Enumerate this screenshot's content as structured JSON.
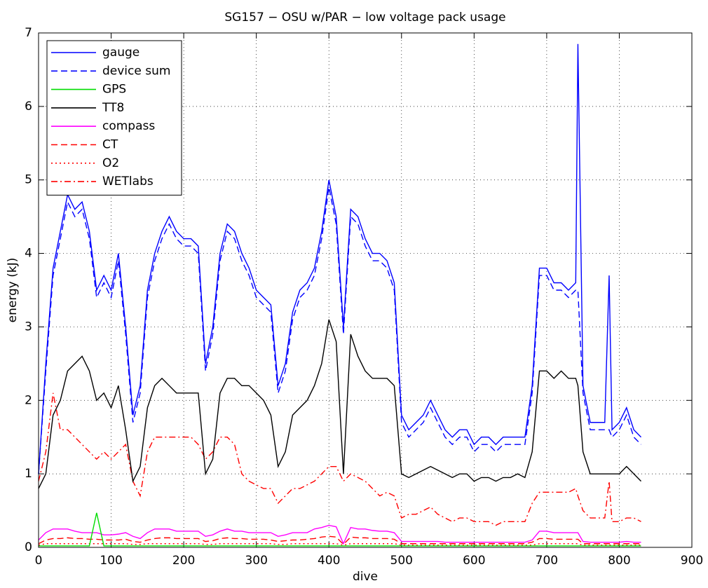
{
  "chart_data": {
    "type": "line",
    "title": "SG157 − OSU w/PAR − low voltage pack usage",
    "x_label": "dive",
    "y_label": "energy (kJ)",
    "xlim": [
      0,
      900
    ],
    "ylim": [
      0,
      7
    ],
    "xticks": [
      0,
      100,
      200,
      300,
      400,
      500,
      600,
      700,
      800,
      900
    ],
    "yticks": [
      0,
      1,
      2,
      3,
      4,
      5,
      6,
      7
    ],
    "grid": true,
    "legend": "upper left",
    "x": [
      0,
      10,
      20,
      30,
      40,
      50,
      60,
      70,
      80,
      90,
      100,
      110,
      120,
      130,
      140,
      150,
      160,
      170,
      180,
      190,
      200,
      210,
      220,
      230,
      240,
      250,
      260,
      270,
      280,
      290,
      300,
      310,
      320,
      330,
      340,
      350,
      360,
      370,
      380,
      390,
      400,
      410,
      420,
      430,
      440,
      450,
      460,
      470,
      480,
      490,
      500,
      510,
      520,
      530,
      540,
      550,
      560,
      570,
      580,
      590,
      600,
      610,
      620,
      630,
      640,
      650,
      660,
      670,
      680,
      690,
      700,
      710,
      720,
      730,
      740,
      743,
      750,
      760,
      770,
      780,
      786,
      790,
      800,
      810,
      820,
      830
    ],
    "series": [
      {
        "name": "gauge",
        "color": "#0000ff",
        "linestyle": "solid",
        "values": [
          1.0,
          2.5,
          3.8,
          4.3,
          4.8,
          4.6,
          4.7,
          4.3,
          3.5,
          3.7,
          3.5,
          4.0,
          3.0,
          1.8,
          2.2,
          3.5,
          4.0,
          4.3,
          4.5,
          4.3,
          4.2,
          4.2,
          4.1,
          2.5,
          3.0,
          4.0,
          4.4,
          4.3,
          4.0,
          3.8,
          3.5,
          3.4,
          3.3,
          2.2,
          2.5,
          3.2,
          3.5,
          3.6,
          3.8,
          4.3,
          5.0,
          4.5,
          3.0,
          4.6,
          4.5,
          4.2,
          4.0,
          4.0,
          3.9,
          3.6,
          1.8,
          1.6,
          1.7,
          1.8,
          2.0,
          1.8,
          1.6,
          1.5,
          1.6,
          1.6,
          1.4,
          1.5,
          1.5,
          1.4,
          1.5,
          1.5,
          1.5,
          1.5,
          2.2,
          3.8,
          3.8,
          3.6,
          3.6,
          3.5,
          3.6,
          6.85,
          2.2,
          1.7,
          1.7,
          1.7,
          3.7,
          1.6,
          1.7,
          1.9,
          1.6,
          1.5
        ]
      },
      {
        "name": "device sum",
        "color": "#0000ff",
        "linestyle": "dashed",
        "values": [
          1.0,
          2.4,
          3.7,
          4.2,
          4.7,
          4.5,
          4.6,
          4.2,
          3.4,
          3.6,
          3.4,
          3.9,
          2.9,
          1.7,
          2.1,
          3.4,
          3.9,
          4.2,
          4.4,
          4.2,
          4.1,
          4.1,
          4.0,
          2.4,
          2.9,
          3.9,
          4.3,
          4.2,
          3.9,
          3.7,
          3.4,
          3.3,
          3.2,
          2.1,
          2.4,
          3.1,
          3.4,
          3.5,
          3.7,
          4.2,
          4.9,
          4.4,
          2.9,
          4.5,
          4.4,
          4.1,
          3.9,
          3.9,
          3.8,
          3.5,
          1.7,
          1.5,
          1.6,
          1.7,
          1.9,
          1.7,
          1.5,
          1.4,
          1.5,
          1.5,
          1.3,
          1.4,
          1.4,
          1.3,
          1.4,
          1.4,
          1.4,
          1.4,
          2.1,
          3.7,
          3.7,
          3.5,
          3.5,
          3.4,
          3.5,
          3.5,
          2.1,
          1.6,
          1.6,
          1.6,
          1.6,
          1.5,
          1.6,
          1.8,
          1.5,
          1.4
        ]
      },
      {
        "name": "GPS",
        "color": "#00dd00",
        "linestyle": "solid",
        "values": [
          0.02,
          0.02,
          0.02,
          0.02,
          0.02,
          0.02,
          0.02,
          0.02,
          0.47,
          0.02,
          0.02,
          0.02,
          0.02,
          0.02,
          0.02,
          0.02,
          0.02,
          0.02,
          0.02,
          0.02,
          0.02,
          0.02,
          0.02,
          0.02,
          0.02,
          0.02,
          0.02,
          0.02,
          0.02,
          0.02,
          0.02,
          0.02,
          0.02,
          0.02,
          0.02,
          0.02,
          0.02,
          0.02,
          0.02,
          0.02,
          0.02,
          0.02,
          0.02,
          0.02,
          0.02,
          0.02,
          0.02,
          0.02,
          0.02,
          0.02,
          0.02,
          0.02,
          0.02,
          0.02,
          0.02,
          0.02,
          0.02,
          0.02,
          0.02,
          0.02,
          0.02,
          0.02,
          0.02,
          0.02,
          0.02,
          0.02,
          0.02,
          0.02,
          0.02,
          0.02,
          0.02,
          0.02,
          0.02,
          0.02,
          0.02,
          0.02,
          0.02,
          0.02,
          0.02,
          0.02,
          0.02,
          0.02,
          0.02,
          0.02,
          0.02,
          0.02
        ]
      },
      {
        "name": "TT8",
        "color": "#000000",
        "linestyle": "solid",
        "values": [
          0.8,
          1.0,
          1.8,
          2.0,
          2.4,
          2.5,
          2.6,
          2.4,
          2.0,
          2.1,
          1.9,
          2.2,
          1.6,
          0.9,
          1.1,
          1.9,
          2.2,
          2.3,
          2.2,
          2.1,
          2.1,
          2.1,
          2.1,
          1.0,
          1.2,
          2.1,
          2.3,
          2.3,
          2.2,
          2.2,
          2.1,
          2.0,
          1.8,
          1.1,
          1.3,
          1.8,
          1.9,
          2.0,
          2.2,
          2.5,
          3.1,
          2.8,
          1.0,
          2.9,
          2.6,
          2.4,
          2.3,
          2.3,
          2.3,
          2.2,
          1.0,
          0.95,
          1.0,
          1.05,
          1.1,
          1.05,
          1.0,
          0.95,
          1.0,
          1.0,
          0.9,
          0.95,
          0.95,
          0.9,
          0.95,
          0.95,
          1.0,
          0.95,
          1.3,
          2.4,
          2.4,
          2.3,
          2.4,
          2.3,
          2.3,
          2.2,
          1.3,
          1.0,
          1.0,
          1.0,
          1.0,
          1.0,
          1.0,
          1.1,
          1.0,
          0.9
        ]
      },
      {
        "name": "compass",
        "color": "#ff00ff",
        "linestyle": "solid",
        "values": [
          0.1,
          0.2,
          0.25,
          0.25,
          0.25,
          0.22,
          0.2,
          0.2,
          0.2,
          0.17,
          0.17,
          0.18,
          0.2,
          0.15,
          0.12,
          0.2,
          0.25,
          0.25,
          0.25,
          0.22,
          0.22,
          0.22,
          0.22,
          0.15,
          0.17,
          0.22,
          0.25,
          0.22,
          0.22,
          0.2,
          0.2,
          0.2,
          0.2,
          0.15,
          0.17,
          0.2,
          0.2,
          0.2,
          0.25,
          0.27,
          0.3,
          0.28,
          0.05,
          0.27,
          0.25,
          0.25,
          0.23,
          0.22,
          0.22,
          0.2,
          0.08,
          0.08,
          0.08,
          0.08,
          0.08,
          0.08,
          0.07,
          0.07,
          0.07,
          0.07,
          0.07,
          0.07,
          0.07,
          0.07,
          0.07,
          0.07,
          0.07,
          0.07,
          0.1,
          0.22,
          0.22,
          0.2,
          0.2,
          0.2,
          0.2,
          0.2,
          0.08,
          0.07,
          0.07,
          0.07,
          0.07,
          0.07,
          0.07,
          0.08,
          0.07,
          0.07
        ]
      },
      {
        "name": "CT",
        "color": "#ff0000",
        "linestyle": "dashed",
        "values": [
          0.05,
          0.1,
          0.12,
          0.12,
          0.13,
          0.12,
          0.12,
          0.11,
          0.11,
          0.1,
          0.1,
          0.1,
          0.11,
          0.08,
          0.07,
          0.1,
          0.12,
          0.13,
          0.13,
          0.12,
          0.12,
          0.12,
          0.12,
          0.08,
          0.09,
          0.12,
          0.13,
          0.12,
          0.12,
          0.11,
          0.11,
          0.11,
          0.1,
          0.08,
          0.09,
          0.1,
          0.1,
          0.11,
          0.12,
          0.14,
          0.15,
          0.14,
          0.04,
          0.14,
          0.13,
          0.13,
          0.12,
          0.12,
          0.12,
          0.11,
          0.05,
          0.05,
          0.05,
          0.05,
          0.05,
          0.05,
          0.05,
          0.05,
          0.05,
          0.05,
          0.05,
          0.05,
          0.05,
          0.05,
          0.05,
          0.05,
          0.05,
          0.05,
          0.07,
          0.12,
          0.12,
          0.11,
          0.11,
          0.11,
          0.11,
          0.11,
          0.05,
          0.05,
          0.05,
          0.05,
          0.05,
          0.05,
          0.05,
          0.05,
          0.05,
          0.05
        ]
      },
      {
        "name": "O2",
        "color": "#ff0000",
        "linestyle": "dotted",
        "values": [
          0.03,
          0.05,
          0.05,
          0.05,
          0.05,
          0.05,
          0.05,
          0.05,
          0.05,
          0.05,
          0.05,
          0.05,
          0.05,
          0.04,
          0.04,
          0.05,
          0.05,
          0.05,
          0.05,
          0.05,
          0.05,
          0.05,
          0.05,
          0.04,
          0.04,
          0.05,
          0.05,
          0.05,
          0.05,
          0.05,
          0.05,
          0.05,
          0.05,
          0.04,
          0.04,
          0.05,
          0.05,
          0.05,
          0.05,
          0.05,
          0.05,
          0.05,
          0.03,
          0.05,
          0.05,
          0.05,
          0.05,
          0.05,
          0.05,
          0.05,
          0.03,
          0.03,
          0.03,
          0.03,
          0.03,
          0.03,
          0.03,
          0.03,
          0.03,
          0.03,
          0.03,
          0.03,
          0.03,
          0.03,
          0.03,
          0.03,
          0.03,
          0.03,
          0.03,
          0.05,
          0.05,
          0.05,
          0.05,
          0.05,
          0.05,
          0.05,
          0.03,
          0.03,
          0.03,
          0.03,
          0.03,
          0.03,
          0.03,
          0.03,
          0.03,
          0.03
        ]
      },
      {
        "name": "WETlabs",
        "color": "#ff0000",
        "linestyle": "dashdot",
        "values": [
          0.9,
          1.3,
          2.1,
          1.6,
          1.6,
          1.5,
          1.4,
          1.3,
          1.2,
          1.3,
          1.2,
          1.3,
          1.4,
          0.9,
          0.7,
          1.3,
          1.5,
          1.5,
          1.5,
          1.5,
          1.5,
          1.5,
          1.4,
          1.2,
          1.3,
          1.5,
          1.5,
          1.4,
          1.0,
          0.9,
          0.85,
          0.8,
          0.8,
          0.6,
          0.7,
          0.8,
          0.8,
          0.85,
          0.9,
          1.0,
          1.1,
          1.1,
          0.9,
          1.0,
          0.95,
          0.9,
          0.8,
          0.7,
          0.75,
          0.7,
          0.4,
          0.45,
          0.45,
          0.5,
          0.55,
          0.45,
          0.4,
          0.35,
          0.4,
          0.4,
          0.35,
          0.35,
          0.35,
          0.3,
          0.35,
          0.35,
          0.35,
          0.35,
          0.6,
          0.75,
          0.75,
          0.75,
          0.75,
          0.75,
          0.8,
          0.7,
          0.5,
          0.4,
          0.4,
          0.4,
          0.9,
          0.35,
          0.35,
          0.4,
          0.4,
          0.35
        ]
      }
    ]
  }
}
